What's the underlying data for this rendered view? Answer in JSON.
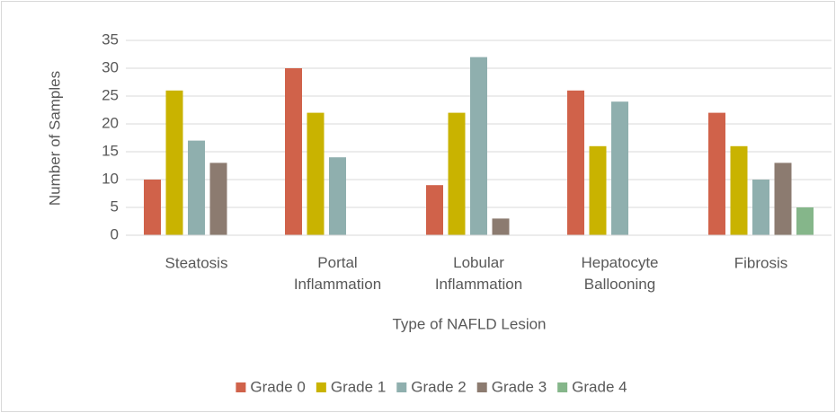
{
  "chart_data": {
    "type": "bar",
    "x_label": "Type of NAFLD Lesion",
    "y_label": "Number of Samples",
    "categories": [
      "Steatosis",
      "Portal Inflammation",
      "Lobular Inflammation",
      "Hepatocyte Ballooning",
      "Fibrosis"
    ],
    "series": [
      {
        "name": "Grade 0",
        "color": "#d0624a",
        "values": [
          10,
          30,
          9,
          26,
          22
        ]
      },
      {
        "name": "Grade 1",
        "color": "#c9b300",
        "values": [
          26,
          22,
          22,
          16,
          16
        ]
      },
      {
        "name": "Grade 2",
        "color": "#8fafae",
        "values": [
          17,
          14,
          32,
          24,
          10
        ]
      },
      {
        "name": "Grade 3",
        "color": "#8c7b70",
        "values": [
          13,
          0,
          3,
          0,
          13
        ]
      },
      {
        "name": "Grade 4",
        "color": "#85b68a",
        "values": [
          0,
          0,
          0,
          0,
          5
        ]
      }
    ],
    "ylim": [
      0,
      35
    ],
    "yticks": [
      0,
      5,
      10,
      15,
      20,
      25,
      30,
      35
    ],
    "grid": true,
    "legend": "bottom"
  }
}
